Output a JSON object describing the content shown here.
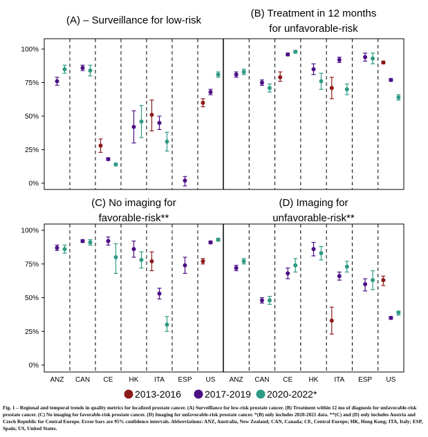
{
  "chart_data": {
    "type": "scatter",
    "countries": [
      "ANZ",
      "CAN",
      "CE",
      "HK",
      "ITA",
      "ESP",
      "US"
    ],
    "y_ticks": [
      "0%",
      "25%",
      "50%",
      "75%",
      "100%"
    ],
    "ylim": [
      0,
      100
    ],
    "legend": {
      "placement": "bottom-center",
      "entries": [
        {
          "name": "2013-2016",
          "color": "#8b1a1a"
        },
        {
          "name": "2017-2019",
          "color": "#4b0f85"
        },
        {
          "name": "2020-2022*",
          "color": "#2e9a84"
        }
      ]
    },
    "panels": [
      {
        "title": [
          "(A) – Surveillance for low-risk"
        ],
        "points": [
          {
            "country": "ANZ",
            "period": "2017-2019",
            "value": 76,
            "low": 73,
            "high": 79
          },
          {
            "country": "ANZ",
            "period": "2020-2022*",
            "value": 85,
            "low": 82,
            "high": 88
          },
          {
            "country": "CAN",
            "period": "2017-2019",
            "value": 86,
            "low": 84,
            "high": 88
          },
          {
            "country": "CAN",
            "period": "2020-2022*",
            "value": 84,
            "low": 80,
            "high": 88
          },
          {
            "country": "CE",
            "period": "2013-2016",
            "value": 28,
            "low": 23,
            "high": 33
          },
          {
            "country": "CE",
            "period": "2017-2019",
            "value": 18,
            "low": 17,
            "high": 19
          },
          {
            "country": "CE",
            "period": "2020-2022*",
            "value": 14,
            "low": 13,
            "high": 15
          },
          {
            "country": "HK",
            "period": "2017-2019",
            "value": 42,
            "low": 30,
            "high": 54
          },
          {
            "country": "HK",
            "period": "2020-2022*",
            "value": 46,
            "low": 34,
            "high": 58
          },
          {
            "country": "ITA",
            "period": "2013-2016",
            "value": 51,
            "low": 39,
            "high": 62
          },
          {
            "country": "ITA",
            "period": "2017-2019",
            "value": 45,
            "low": 40,
            "high": 50
          },
          {
            "country": "ITA",
            "period": "2020-2022*",
            "value": 31,
            "low": 24,
            "high": 38
          },
          {
            "country": "ESP",
            "period": "2017-2019",
            "value": 2,
            "low": -2,
            "high": 5
          },
          {
            "country": "US",
            "period": "2013-2016",
            "value": 60,
            "low": 57,
            "high": 63
          },
          {
            "country": "US",
            "period": "2017-2019",
            "value": 68,
            "low": 66,
            "high": 70
          },
          {
            "country": "US",
            "period": "2020-2022*",
            "value": 81,
            "low": 79,
            "high": 83
          }
        ]
      },
      {
        "title": [
          "(B) Treatment in 12 months",
          "for unfavorable-risk"
        ],
        "points": [
          {
            "country": "ANZ",
            "period": "2017-2019",
            "value": 81,
            "low": 79,
            "high": 83
          },
          {
            "country": "ANZ",
            "period": "2020-2022*",
            "value": 83,
            "low": 81,
            "high": 85
          },
          {
            "country": "CAN",
            "period": "2017-2019",
            "value": 75,
            "low": 73,
            "high": 77
          },
          {
            "country": "CAN",
            "period": "2020-2022*",
            "value": 71,
            "low": 68,
            "high": 74
          },
          {
            "country": "CE",
            "period": "2013-2016",
            "value": 79,
            "low": 76,
            "high": 83
          },
          {
            "country": "CE",
            "period": "2017-2019",
            "value": 96,
            "low": 95,
            "high": 97
          },
          {
            "country": "CE",
            "period": "2020-2022*",
            "value": 98,
            "low": 97,
            "high": 99
          },
          {
            "country": "HK",
            "period": "2017-2019",
            "value": 85,
            "low": 81,
            "high": 89
          },
          {
            "country": "HK",
            "period": "2020-2022*",
            "value": 76,
            "low": 70,
            "high": 82
          },
          {
            "country": "ITA",
            "period": "2013-2016",
            "value": 71,
            "low": 63,
            "high": 79
          },
          {
            "country": "ITA",
            "period": "2017-2019",
            "value": 92,
            "low": 90,
            "high": 94
          },
          {
            "country": "ITA",
            "period": "2020-2022*",
            "value": 70,
            "low": 66,
            "high": 74
          },
          {
            "country": "ESP",
            "period": "2017-2019",
            "value": 94,
            "low": 91,
            "high": 97
          },
          {
            "country": "ESP",
            "period": "2020-2022*",
            "value": 93,
            "low": 89,
            "high": 97
          },
          {
            "country": "US",
            "period": "2013-2016",
            "value": 90,
            "low": 89,
            "high": 91
          },
          {
            "country": "US",
            "period": "2017-2019",
            "value": 77,
            "low": 76,
            "high": 78
          },
          {
            "country": "US",
            "period": "2020-2022*",
            "value": 64,
            "low": 62,
            "high": 66
          }
        ]
      },
      {
        "title": [
          "(C) No imaging for",
          "favorable-risk**"
        ],
        "points": [
          {
            "country": "ANZ",
            "period": "2017-2019",
            "value": 87,
            "low": 85,
            "high": 89
          },
          {
            "country": "ANZ",
            "period": "2020-2022*",
            "value": 86,
            "low": 83,
            "high": 89
          },
          {
            "country": "CAN",
            "period": "2017-2019",
            "value": 92,
            "low": 91,
            "high": 93
          },
          {
            "country": "CAN",
            "period": "2020-2022*",
            "value": 91,
            "low": 89,
            "high": 93
          },
          {
            "country": "CE",
            "period": "2017-2019",
            "value": 92,
            "low": 89,
            "high": 95
          },
          {
            "country": "CE",
            "period": "2020-2022*",
            "value": 80,
            "low": 68,
            "high": 90
          },
          {
            "country": "HK",
            "period": "2017-2019",
            "value": 86,
            "low": 80,
            "high": 92
          },
          {
            "country": "HK",
            "period": "2020-2022*",
            "value": 78,
            "low": 72,
            "high": 84
          },
          {
            "country": "ITA",
            "period": "2013-2016",
            "value": 77,
            "low": 70,
            "high": 84
          },
          {
            "country": "ITA",
            "period": "2017-2019",
            "value": 53,
            "low": 49,
            "high": 57
          },
          {
            "country": "ITA",
            "period": "2020-2022*",
            "value": 30,
            "low": 25,
            "high": 36
          },
          {
            "country": "ESP",
            "period": "2017-2019",
            "value": 74,
            "low": 68,
            "high": 80
          },
          {
            "country": "US",
            "period": "2013-2016",
            "value": 77,
            "low": 75,
            "high": 79
          },
          {
            "country": "US",
            "period": "2017-2019",
            "value": 91,
            "low": 90,
            "high": 92
          },
          {
            "country": "US",
            "period": "2020-2022*",
            "value": 93,
            "low": 92,
            "high": 94
          }
        ]
      },
      {
        "title": [
          "(D) Imaging for",
          "unfavorable-risk**"
        ],
        "points": [
          {
            "country": "ANZ",
            "period": "2017-2019",
            "value": 72,
            "low": 70,
            "high": 74
          },
          {
            "country": "ANZ",
            "period": "2020-2022*",
            "value": 77,
            "low": 75,
            "high": 79
          },
          {
            "country": "CAN",
            "period": "2017-2019",
            "value": 48,
            "low": 46,
            "high": 50
          },
          {
            "country": "CAN",
            "period": "2020-2022*",
            "value": 48,
            "low": 45,
            "high": 51
          },
          {
            "country": "CE",
            "period": "2017-2019",
            "value": 68,
            "low": 64,
            "high": 72
          },
          {
            "country": "CE",
            "period": "2020-2022*",
            "value": 74,
            "low": 69,
            "high": 79
          },
          {
            "country": "HK",
            "period": "2017-2019",
            "value": 86,
            "low": 81,
            "high": 91
          },
          {
            "country": "HK",
            "period": "2020-2022*",
            "value": 83,
            "low": 78,
            "high": 88
          },
          {
            "country": "ITA",
            "period": "2013-2016",
            "value": 33,
            "low": 23,
            "high": 43
          },
          {
            "country": "ITA",
            "period": "2017-2019",
            "value": 66,
            "low": 63,
            "high": 69
          },
          {
            "country": "ITA",
            "period": "2020-2022*",
            "value": 73,
            "low": 69,
            "high": 77
          },
          {
            "country": "ESP",
            "period": "2017-2019",
            "value": 60,
            "low": 55,
            "high": 64
          },
          {
            "country": "ESP",
            "period": "2020-2022*",
            "value": 63,
            "low": 56,
            "high": 70
          },
          {
            "country": "US",
            "period": "2013-2016",
            "value": 63,
            "low": 59,
            "high": 66
          },
          {
            "country": "US",
            "period": "2017-2019",
            "value": 35,
            "low": 34,
            "high": 36
          },
          {
            "country": "US",
            "period": "2020-2022*",
            "value": 39,
            "low": 37,
            "high": 40
          }
        ]
      }
    ]
  },
  "caption": {
    "label": "Fig. 1",
    "text": " – Regional and temporal trends in quality metrics for localized prostate cancer. (A) Surveillance for low-risk prostate cancer. (B) Treatment within 12 mo of diagnosis for unfavorable-risk prostate cancer. (C) No imaging for favorable-risk prostate cancer. (D) Imaging for unfavorable-risk prostate cancer. *(B) only includes 2020-2021 data. **(C) and (D) only includes Austria and Czech Republic for Central Europe. Error bars are 95% confidence intervals. Abbreviations: ANZ, Australia, New Zealand; CAN, Canada; CE, Central Europe; HK, Hong Kong; ITA, Italy; ESP, Spain; US, United States."
  }
}
